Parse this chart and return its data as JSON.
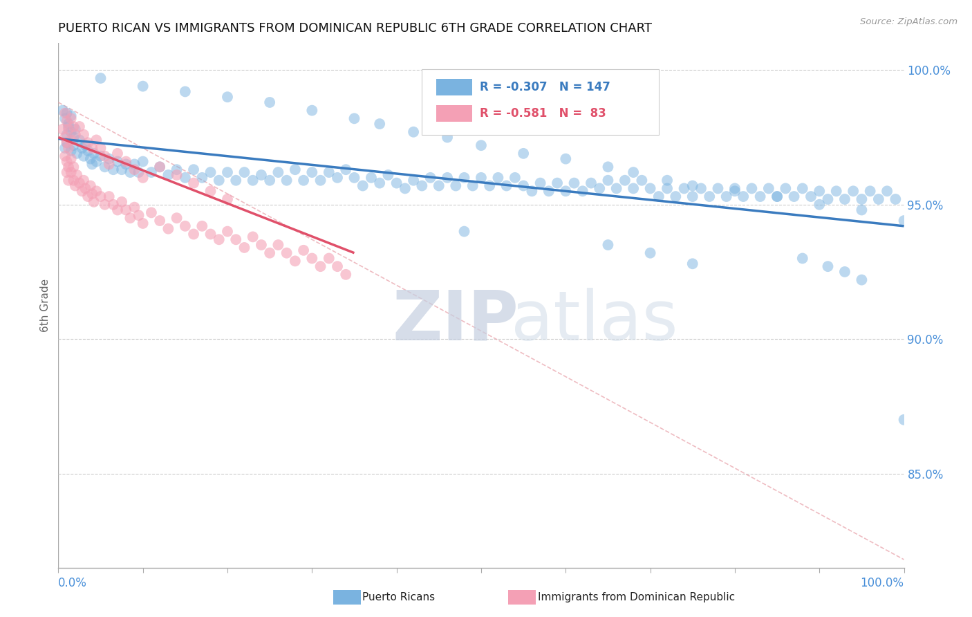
{
  "title": "PUERTO RICAN VS IMMIGRANTS FROM DOMINICAN REPUBLIC 6TH GRADE CORRELATION CHART",
  "source_text": "Source: ZipAtlas.com",
  "ylabel": "6th Grade",
  "ylabel_right_ticks": [
    "100.0%",
    "95.0%",
    "90.0%",
    "85.0%"
  ],
  "ylabel_right_values": [
    1.0,
    0.95,
    0.9,
    0.85
  ],
  "xlim": [
    0.0,
    1.0
  ],
  "ylim": [
    0.815,
    1.01
  ],
  "blue_R": -0.307,
  "blue_N": 147,
  "pink_R": -0.581,
  "pink_N": 83,
  "blue_color": "#7ab3e0",
  "pink_color": "#f4a0b5",
  "blue_line_color": "#3a7bbf",
  "pink_line_color": "#e0506a",
  "background_color": "#ffffff",
  "blue_trend_x": [
    0.0,
    1.0
  ],
  "blue_trend_y": [
    0.9745,
    0.942
  ],
  "pink_trend_x": [
    0.0,
    0.35
  ],
  "pink_trend_y": [
    0.975,
    0.932
  ],
  "diag_line_x": [
    0.0,
    1.0
  ],
  "diag_line_y": [
    0.988,
    0.818
  ],
  "blue_scatter": [
    [
      0.005,
      0.985
    ],
    [
      0.008,
      0.982
    ],
    [
      0.01,
      0.984
    ],
    [
      0.012,
      0.98
    ],
    [
      0.015,
      0.983
    ],
    [
      0.01,
      0.976
    ],
    [
      0.012,
      0.979
    ],
    [
      0.015,
      0.977
    ],
    [
      0.018,
      0.975
    ],
    [
      0.02,
      0.978
    ],
    [
      0.008,
      0.971
    ],
    [
      0.01,
      0.973
    ],
    [
      0.015,
      0.97
    ],
    [
      0.018,
      0.972
    ],
    [
      0.022,
      0.969
    ],
    [
      0.025,
      0.974
    ],
    [
      0.028,
      0.971
    ],
    [
      0.03,
      0.968
    ],
    [
      0.032,
      0.972
    ],
    [
      0.035,
      0.97
    ],
    [
      0.038,
      0.967
    ],
    [
      0.04,
      0.965
    ],
    [
      0.042,
      0.969
    ],
    [
      0.045,
      0.966
    ],
    [
      0.05,
      0.968
    ],
    [
      0.055,
      0.964
    ],
    [
      0.06,
      0.967
    ],
    [
      0.065,
      0.963
    ],
    [
      0.07,
      0.966
    ],
    [
      0.075,
      0.963
    ],
    [
      0.08,
      0.965
    ],
    [
      0.085,
      0.962
    ],
    [
      0.09,
      0.965
    ],
    [
      0.095,
      0.962
    ],
    [
      0.1,
      0.966
    ],
    [
      0.11,
      0.962
    ],
    [
      0.12,
      0.964
    ],
    [
      0.13,
      0.961
    ],
    [
      0.14,
      0.963
    ],
    [
      0.15,
      0.96
    ],
    [
      0.16,
      0.963
    ],
    [
      0.17,
      0.96
    ],
    [
      0.18,
      0.962
    ],
    [
      0.19,
      0.959
    ],
    [
      0.2,
      0.962
    ],
    [
      0.21,
      0.959
    ],
    [
      0.22,
      0.962
    ],
    [
      0.23,
      0.959
    ],
    [
      0.24,
      0.961
    ],
    [
      0.25,
      0.959
    ],
    [
      0.26,
      0.962
    ],
    [
      0.27,
      0.959
    ],
    [
      0.28,
      0.963
    ],
    [
      0.29,
      0.959
    ],
    [
      0.3,
      0.962
    ],
    [
      0.31,
      0.959
    ],
    [
      0.32,
      0.962
    ],
    [
      0.33,
      0.96
    ],
    [
      0.34,
      0.963
    ],
    [
      0.35,
      0.96
    ],
    [
      0.36,
      0.957
    ],
    [
      0.37,
      0.96
    ],
    [
      0.38,
      0.958
    ],
    [
      0.39,
      0.961
    ],
    [
      0.4,
      0.958
    ],
    [
      0.41,
      0.956
    ],
    [
      0.42,
      0.959
    ],
    [
      0.43,
      0.957
    ],
    [
      0.44,
      0.96
    ],
    [
      0.45,
      0.957
    ],
    [
      0.46,
      0.96
    ],
    [
      0.47,
      0.957
    ],
    [
      0.48,
      0.96
    ],
    [
      0.49,
      0.957
    ],
    [
      0.5,
      0.96
    ],
    [
      0.51,
      0.957
    ],
    [
      0.52,
      0.96
    ],
    [
      0.53,
      0.957
    ],
    [
      0.54,
      0.96
    ],
    [
      0.55,
      0.957
    ],
    [
      0.56,
      0.955
    ],
    [
      0.57,
      0.958
    ],
    [
      0.58,
      0.955
    ],
    [
      0.59,
      0.958
    ],
    [
      0.6,
      0.955
    ],
    [
      0.61,
      0.958
    ],
    [
      0.62,
      0.955
    ],
    [
      0.63,
      0.958
    ],
    [
      0.64,
      0.956
    ],
    [
      0.65,
      0.959
    ],
    [
      0.66,
      0.956
    ],
    [
      0.67,
      0.959
    ],
    [
      0.68,
      0.956
    ],
    [
      0.69,
      0.959
    ],
    [
      0.7,
      0.956
    ],
    [
      0.71,
      0.953
    ],
    [
      0.72,
      0.956
    ],
    [
      0.73,
      0.953
    ],
    [
      0.74,
      0.956
    ],
    [
      0.75,
      0.953
    ],
    [
      0.76,
      0.956
    ],
    [
      0.77,
      0.953
    ],
    [
      0.78,
      0.956
    ],
    [
      0.79,
      0.953
    ],
    [
      0.8,
      0.956
    ],
    [
      0.81,
      0.953
    ],
    [
      0.82,
      0.956
    ],
    [
      0.83,
      0.953
    ],
    [
      0.84,
      0.956
    ],
    [
      0.85,
      0.953
    ],
    [
      0.86,
      0.956
    ],
    [
      0.87,
      0.953
    ],
    [
      0.88,
      0.956
    ],
    [
      0.89,
      0.953
    ],
    [
      0.9,
      0.955
    ],
    [
      0.91,
      0.952
    ],
    [
      0.92,
      0.955
    ],
    [
      0.93,
      0.952
    ],
    [
      0.94,
      0.955
    ],
    [
      0.95,
      0.952
    ],
    [
      0.96,
      0.955
    ],
    [
      0.97,
      0.952
    ],
    [
      0.98,
      0.955
    ],
    [
      0.99,
      0.952
    ],
    [
      1.0,
      0.944
    ],
    [
      0.05,
      0.997
    ],
    [
      0.1,
      0.994
    ],
    [
      0.15,
      0.992
    ],
    [
      0.2,
      0.99
    ],
    [
      0.25,
      0.988
    ],
    [
      0.3,
      0.985
    ],
    [
      0.35,
      0.982
    ],
    [
      0.38,
      0.98
    ],
    [
      0.42,
      0.977
    ],
    [
      0.46,
      0.975
    ],
    [
      0.5,
      0.972
    ],
    [
      0.55,
      0.969
    ],
    [
      0.6,
      0.967
    ],
    [
      0.65,
      0.964
    ],
    [
      0.68,
      0.962
    ],
    [
      0.72,
      0.959
    ],
    [
      0.75,
      0.957
    ],
    [
      0.8,
      0.955
    ],
    [
      0.85,
      0.953
    ],
    [
      0.9,
      0.95
    ],
    [
      0.95,
      0.948
    ],
    [
      1.0,
      0.87
    ],
    [
      0.88,
      0.93
    ],
    [
      0.91,
      0.927
    ],
    [
      0.93,
      0.925
    ],
    [
      0.95,
      0.922
    ],
    [
      0.48,
      0.94
    ],
    [
      0.65,
      0.935
    ],
    [
      0.7,
      0.932
    ],
    [
      0.75,
      0.928
    ]
  ],
  "pink_scatter": [
    [
      0.005,
      0.978
    ],
    [
      0.008,
      0.975
    ],
    [
      0.01,
      0.973
    ],
    [
      0.012,
      0.971
    ],
    [
      0.015,
      0.974
    ],
    [
      0.008,
      0.968
    ],
    [
      0.01,
      0.966
    ],
    [
      0.012,
      0.964
    ],
    [
      0.015,
      0.967
    ],
    [
      0.018,
      0.964
    ],
    [
      0.01,
      0.962
    ],
    [
      0.012,
      0.959
    ],
    [
      0.015,
      0.962
    ],
    [
      0.018,
      0.959
    ],
    [
      0.02,
      0.957
    ],
    [
      0.022,
      0.961
    ],
    [
      0.025,
      0.958
    ],
    [
      0.028,
      0.955
    ],
    [
      0.03,
      0.959
    ],
    [
      0.032,
      0.956
    ],
    [
      0.035,
      0.953
    ],
    [
      0.038,
      0.957
    ],
    [
      0.04,
      0.954
    ],
    [
      0.042,
      0.951
    ],
    [
      0.045,
      0.955
    ],
    [
      0.05,
      0.953
    ],
    [
      0.055,
      0.95
    ],
    [
      0.06,
      0.953
    ],
    [
      0.065,
      0.95
    ],
    [
      0.07,
      0.948
    ],
    [
      0.075,
      0.951
    ],
    [
      0.08,
      0.948
    ],
    [
      0.085,
      0.945
    ],
    [
      0.09,
      0.949
    ],
    [
      0.095,
      0.946
    ],
    [
      0.1,
      0.943
    ],
    [
      0.11,
      0.947
    ],
    [
      0.12,
      0.944
    ],
    [
      0.13,
      0.941
    ],
    [
      0.14,
      0.945
    ],
    [
      0.15,
      0.942
    ],
    [
      0.16,
      0.939
    ],
    [
      0.17,
      0.942
    ],
    [
      0.18,
      0.939
    ],
    [
      0.19,
      0.937
    ],
    [
      0.2,
      0.94
    ],
    [
      0.21,
      0.937
    ],
    [
      0.22,
      0.934
    ],
    [
      0.23,
      0.938
    ],
    [
      0.24,
      0.935
    ],
    [
      0.25,
      0.932
    ],
    [
      0.26,
      0.935
    ],
    [
      0.27,
      0.932
    ],
    [
      0.28,
      0.929
    ],
    [
      0.29,
      0.933
    ],
    [
      0.3,
      0.93
    ],
    [
      0.31,
      0.927
    ],
    [
      0.32,
      0.93
    ],
    [
      0.33,
      0.927
    ],
    [
      0.34,
      0.924
    ],
    [
      0.008,
      0.984
    ],
    [
      0.01,
      0.981
    ],
    [
      0.012,
      0.978
    ],
    [
      0.015,
      0.982
    ],
    [
      0.018,
      0.979
    ],
    [
      0.02,
      0.976
    ],
    [
      0.025,
      0.979
    ],
    [
      0.03,
      0.976
    ],
    [
      0.035,
      0.973
    ],
    [
      0.04,
      0.971
    ],
    [
      0.045,
      0.974
    ],
    [
      0.05,
      0.971
    ],
    [
      0.055,
      0.968
    ],
    [
      0.06,
      0.965
    ],
    [
      0.07,
      0.969
    ],
    [
      0.08,
      0.966
    ],
    [
      0.09,
      0.963
    ],
    [
      0.1,
      0.96
    ],
    [
      0.12,
      0.964
    ],
    [
      0.14,
      0.961
    ],
    [
      0.16,
      0.958
    ],
    [
      0.18,
      0.955
    ],
    [
      0.2,
      0.952
    ]
  ]
}
